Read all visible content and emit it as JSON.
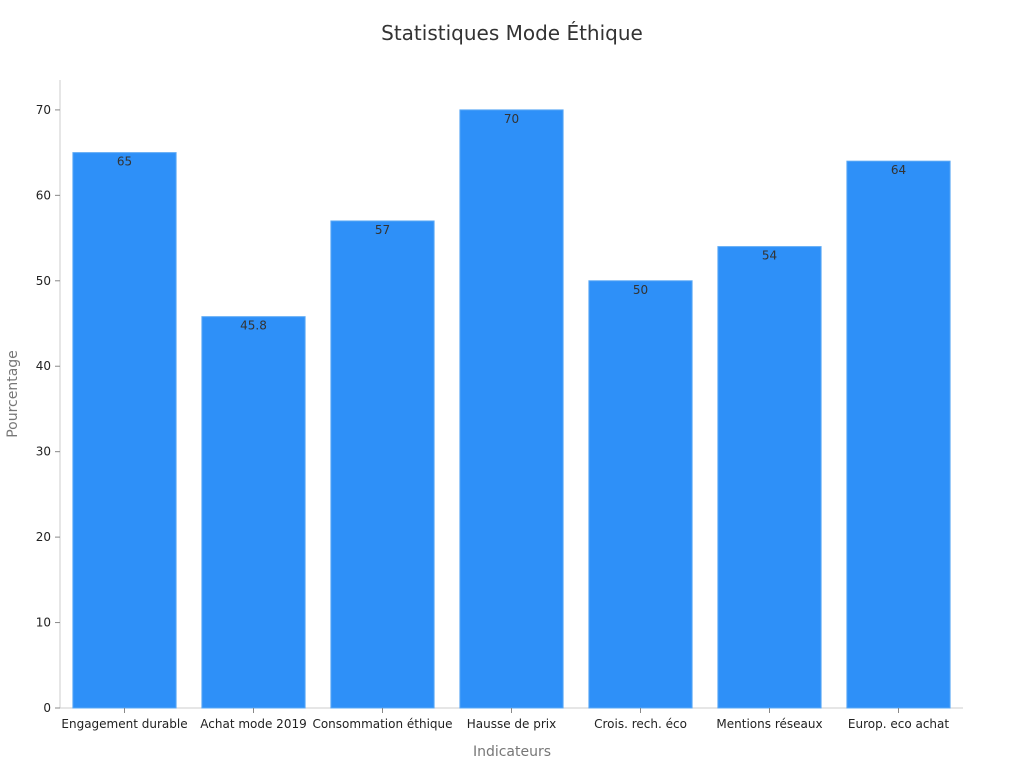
{
  "chart_data": {
    "type": "bar",
    "title": "Statistiques Mode Éthique",
    "xlabel": "Indicateurs",
    "ylabel": "Pourcentage",
    "categories": [
      "Engagement durable",
      "Achat mode 2019",
      "Consommation éthique",
      "Hausse de prix",
      "Crois. rech. éco",
      "Mentions réseaux",
      "Europ. eco achat"
    ],
    "values": [
      65,
      45.8,
      57,
      70,
      50,
      54,
      64
    ],
    "ylim": [
      0,
      73.5
    ],
    "yticks": [
      0,
      10,
      20,
      30,
      40,
      50,
      60,
      70
    ],
    "grid": false,
    "legend": "none",
    "bar_color": "#2e90f8"
  }
}
